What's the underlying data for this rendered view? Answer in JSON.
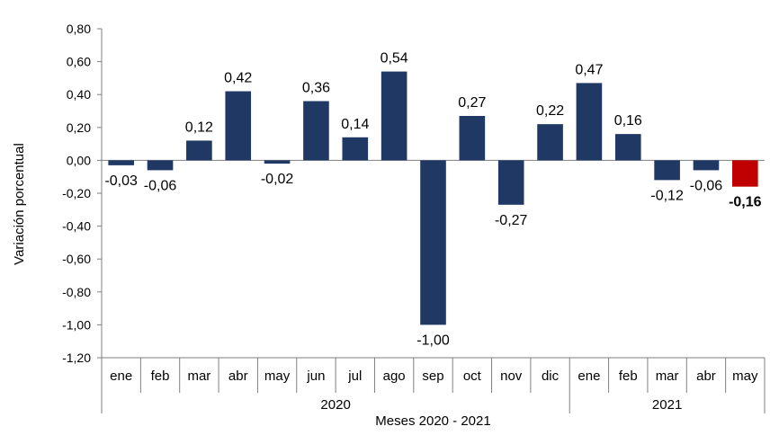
{
  "chart_data": {
    "type": "bar",
    "title": "",
    "xlabel": "Meses 2020 - 2021",
    "ylabel": "Variación porcentual",
    "ylim": [
      -1.2,
      0.8
    ],
    "yticks": [
      "0,80",
      "0,60",
      "0,40",
      "0,20",
      "0,00",
      "-0,20",
      "-0,40",
      "-0,60",
      "-0,80",
      "-1,00",
      "-1,20"
    ],
    "ytick_values": [
      0.8,
      0.6,
      0.4,
      0.2,
      0.0,
      -0.2,
      -0.4,
      -0.6,
      -0.8,
      -1.0,
      -1.2
    ],
    "categories": [
      "ene",
      "feb",
      "mar",
      "abr",
      "may",
      "jun",
      "jul",
      "ago",
      "sep",
      "oct",
      "nov",
      "dic",
      "ene",
      "feb",
      "mar",
      "abr",
      "may"
    ],
    "years": [
      {
        "label": "2020",
        "count": 12
      },
      {
        "label": "2021",
        "count": 5
      }
    ],
    "values": [
      -0.03,
      -0.06,
      0.12,
      0.42,
      -0.02,
      0.36,
      0.14,
      0.54,
      -1.0,
      0.27,
      -0.27,
      0.22,
      0.47,
      0.16,
      -0.12,
      -0.06,
      -0.16
    ],
    "data_labels": [
      "-0,03",
      "-0,06",
      "0,12",
      "0,42",
      "-0,02",
      "0,36",
      "0,14",
      "0,54",
      "-1,00",
      "0,27",
      "-0,27",
      "0,22",
      "0,47",
      "0,16",
      "-0,12",
      "-0,06",
      "-0,16"
    ],
    "bar_color": "#1f3864",
    "highlight_color": "#c00000",
    "highlight_index": 16,
    "grid": false,
    "legend": "none"
  }
}
